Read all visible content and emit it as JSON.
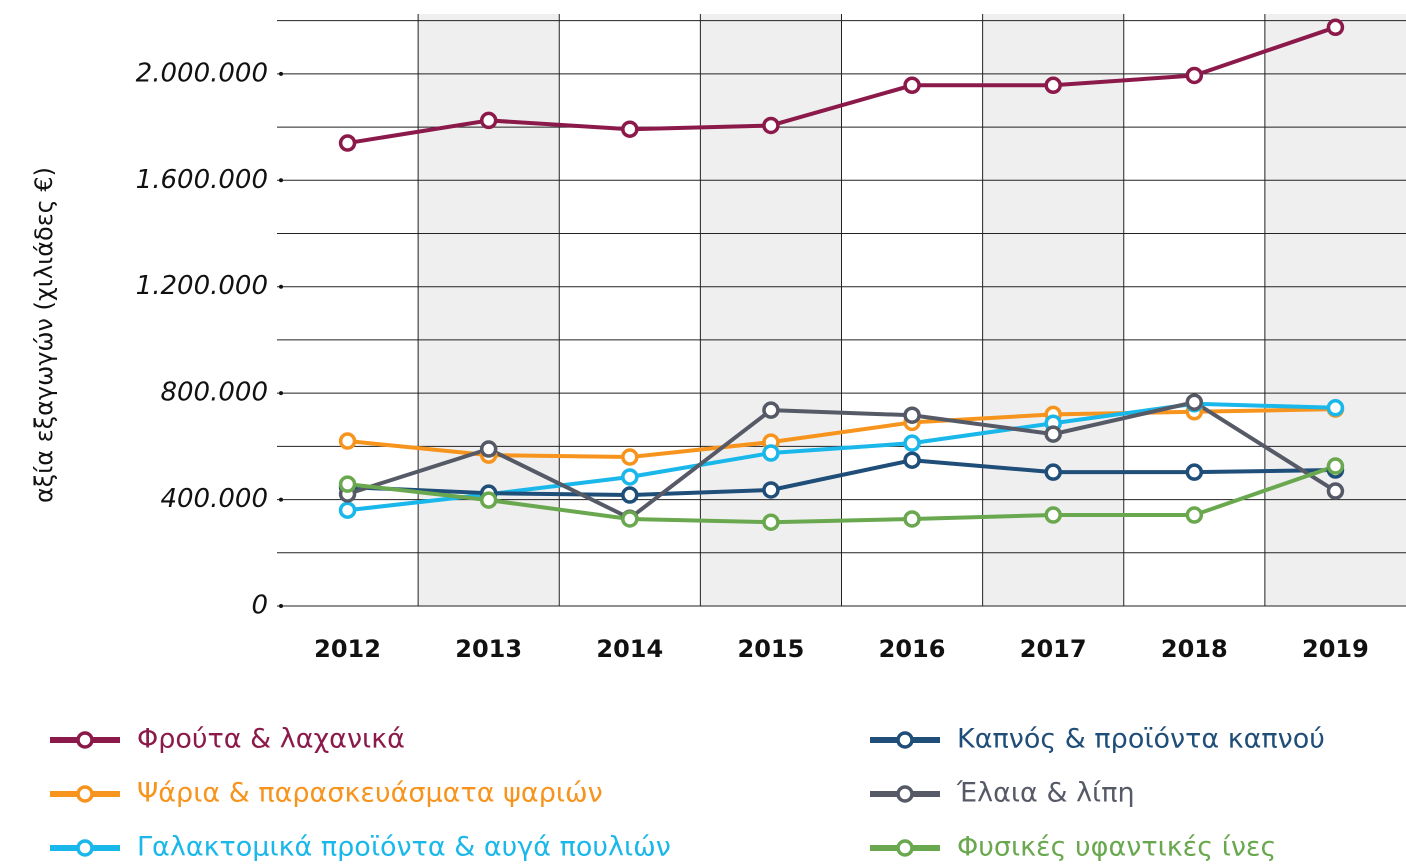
{
  "chart_data": {
    "type": "line",
    "y_axis_label": "αξία εξαγωγών (χιλιάδες €)",
    "categories": [
      "2012",
      "2013",
      "2014",
      "2015",
      "2016",
      "2017",
      "2018",
      "2019"
    ],
    "series": [
      {
        "name": "Φρούτα & λαχανικά",
        "color": "#8b1a4a",
        "values": [
          1740000,
          1825000,
          1792000,
          1806000,
          1957000,
          1957000,
          1994000,
          2175000
        ]
      },
      {
        "name": "Ψάρια & παρασκευάσματα ψαριών",
        "color": "#f7941d",
        "values": [
          620000,
          567000,
          560000,
          616000,
          690000,
          720000,
          730000,
          740000
        ]
      },
      {
        "name": "Γαλακτομικά προϊόντα & αυγά πουλιών",
        "color": "#1ab7ea",
        "values": [
          360000,
          420000,
          485000,
          575000,
          612000,
          687000,
          760000,
          745000
        ]
      },
      {
        "name": "Καπνός & προϊόντα καπνού",
        "color": "#1f4e79",
        "values": [
          447000,
          424000,
          417000,
          436000,
          548000,
          503000,
          503000,
          511000
        ]
      },
      {
        "name": "Έλαια & λίπη",
        "color": "#555a66",
        "values": [
          421000,
          590000,
          330000,
          736000,
          717000,
          646000,
          766000,
          432000
        ]
      },
      {
        "name": "Φυσικές υφαντικές ίνες",
        "color": "#6aa84f",
        "values": [
          458000,
          398000,
          327000,
          315000,
          327000,
          342000,
          342000,
          526000
        ]
      }
    ],
    "ylim": [
      0,
      2225000
    ],
    "yticks": [
      0,
      {
        "value": 400000,
        "label": "400.000"
      },
      {
        "value": 800000,
        "label": "800.000"
      },
      {
        "value": 1200000,
        "label": "1.200.000"
      },
      {
        "value": 1600000,
        "label": "1.600.000"
      },
      {
        "value": 2000000,
        "label": "2.000.000"
      }
    ],
    "yminor_ticks": [
      200000,
      600000,
      1000000,
      1400000,
      1800000,
      2200000
    ],
    "grid": true
  }
}
